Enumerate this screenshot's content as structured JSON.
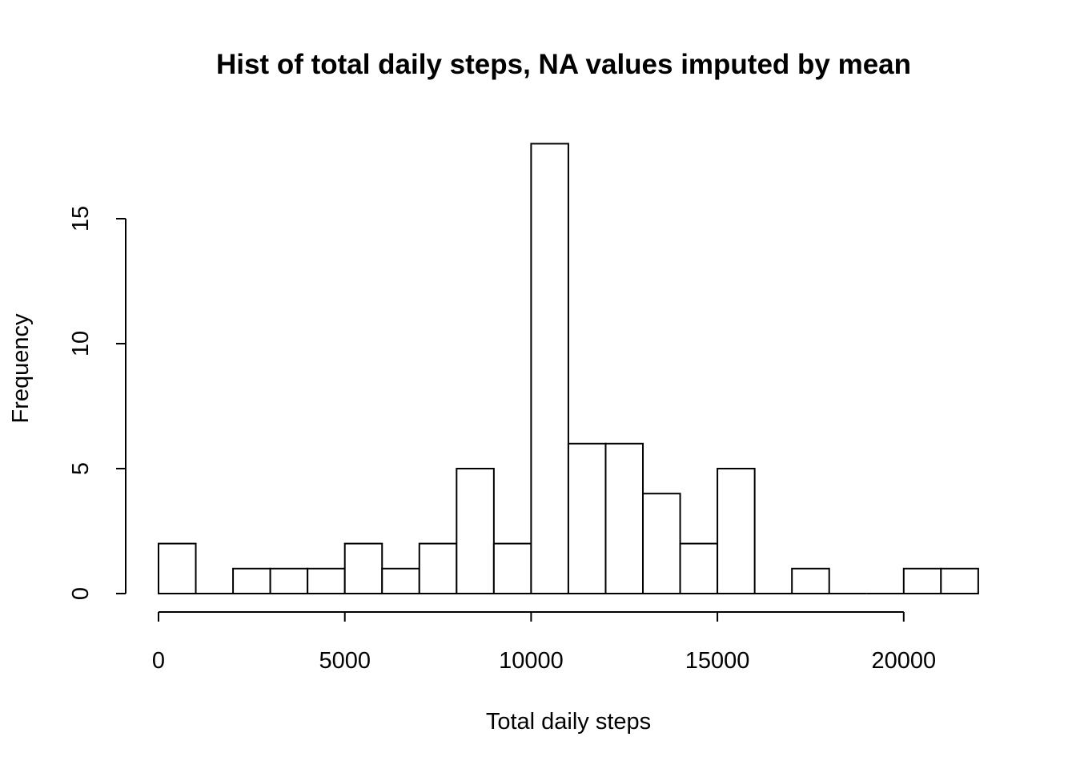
{
  "chart_data": {
    "type": "bar",
    "title": "Hist of total daily steps, NA values imputed by mean",
    "xlabel": "Total daily steps",
    "ylabel": "Frequency",
    "bin_width": 1000,
    "bins": [
      {
        "start": 0,
        "end": 1000,
        "count": 2
      },
      {
        "start": 1000,
        "end": 2000,
        "count": 0
      },
      {
        "start": 2000,
        "end": 3000,
        "count": 1
      },
      {
        "start": 3000,
        "end": 4000,
        "count": 1
      },
      {
        "start": 4000,
        "end": 5000,
        "count": 1
      },
      {
        "start": 5000,
        "end": 6000,
        "count": 2
      },
      {
        "start": 6000,
        "end": 7000,
        "count": 1
      },
      {
        "start": 7000,
        "end": 8000,
        "count": 2
      },
      {
        "start": 8000,
        "end": 9000,
        "count": 5
      },
      {
        "start": 9000,
        "end": 10000,
        "count": 2
      },
      {
        "start": 10000,
        "end": 11000,
        "count": 18
      },
      {
        "start": 11000,
        "end": 12000,
        "count": 6
      },
      {
        "start": 12000,
        "end": 13000,
        "count": 6
      },
      {
        "start": 13000,
        "end": 14000,
        "count": 4
      },
      {
        "start": 14000,
        "end": 15000,
        "count": 2
      },
      {
        "start": 15000,
        "end": 16000,
        "count": 5
      },
      {
        "start": 16000,
        "end": 17000,
        "count": 0
      },
      {
        "start": 17000,
        "end": 18000,
        "count": 1
      },
      {
        "start": 18000,
        "end": 19000,
        "count": 0
      },
      {
        "start": 19000,
        "end": 20000,
        "count": 0
      },
      {
        "start": 20000,
        "end": 21000,
        "count": 1
      },
      {
        "start": 21000,
        "end": 22000,
        "count": 1
      }
    ],
    "x_ticks": [
      0,
      5000,
      10000,
      15000,
      20000
    ],
    "x_tick_labels": [
      "0",
      "5000",
      "10000",
      "15000",
      "20000"
    ],
    "y_ticks": [
      0,
      5,
      10,
      15
    ],
    "y_tick_labels": [
      "0",
      "5",
      "10",
      "15"
    ],
    "xlim": [
      0,
      22000
    ],
    "ylim": [
      0,
      18
    ],
    "grid": false,
    "colors": {
      "bar_fill": "#ffffff",
      "bar_stroke": "#000000"
    }
  }
}
